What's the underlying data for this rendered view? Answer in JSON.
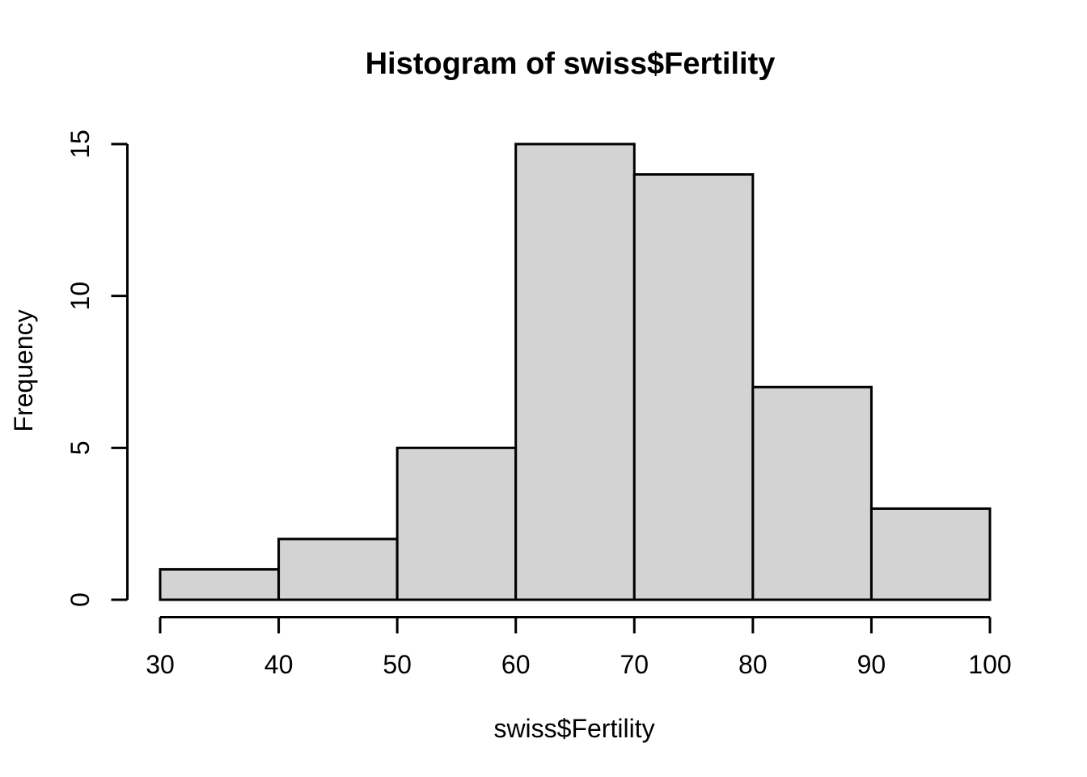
{
  "figure": {
    "background": "#ffffff"
  },
  "chart_data": {
    "type": "bar",
    "subtype": "histogram",
    "title": "Histogram of swiss$Fertility",
    "xlabel": "swiss$Fertility",
    "ylabel": "Frequency",
    "bin_edges": [
      30,
      40,
      50,
      60,
      70,
      80,
      90,
      100
    ],
    "counts": [
      1,
      2,
      5,
      15,
      14,
      7,
      3
    ],
    "x_ticks": [
      30,
      40,
      50,
      60,
      70,
      80,
      90,
      100
    ],
    "y_ticks": [
      0,
      5,
      10,
      15
    ],
    "xlim": [
      30,
      100
    ],
    "ylim": [
      0,
      15
    ],
    "grid": false,
    "legend": "none",
    "colors": {
      "bar_fill": "#d3d3d3",
      "bar_stroke": "#000000",
      "axis": "#000000",
      "text": "#000000"
    }
  }
}
